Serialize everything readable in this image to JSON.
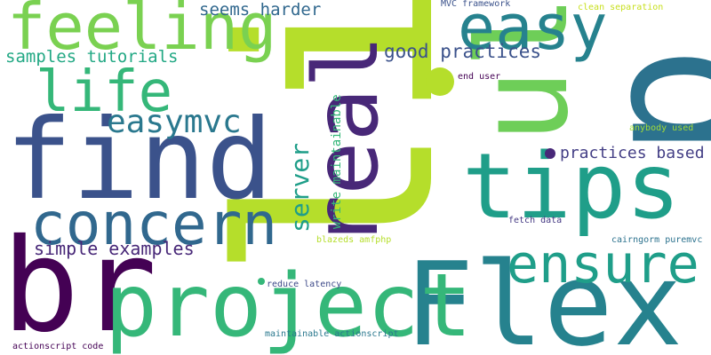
{
  "words": [
    {
      "text": "li",
      "color": "#b5de2b"
    },
    {
      "text": "p",
      "color": "#2c728e"
    },
    {
      "text": "find",
      "color": "#3b528b"
    },
    {
      "text": "br",
      "color": "#440154"
    },
    {
      "text": "Flex",
      "color": "#26828e"
    },
    {
      "text": "tips",
      "color": "#1f9e89"
    },
    {
      "text": "project",
      "color": "#35b779"
    },
    {
      "text": "ul",
      "color": "#6ece58"
    },
    {
      "text": "real",
      "color": "#482878"
    },
    {
      "text": "feeling",
      "color": "#7ad151"
    },
    {
      "text": "concern",
      "color": "#31688e"
    },
    {
      "text": "easy",
      "color": "#26828e"
    },
    {
      "text": "ensure",
      "color": "#1f9e89"
    },
    {
      "text": "life",
      "color": "#35b779"
    },
    {
      "text": "easymvc",
      "color": "#2a788e"
    },
    {
      "text": "server",
      "color": "#1f9e89"
    },
    {
      "text": "simple examples",
      "color": "#482878"
    },
    {
      "text": "good practices",
      "color": "#3b528b"
    },
    {
      "text": "samples tutorials",
      "color": "#22a884"
    },
    {
      "text": "practices based",
      "color": "#433e85"
    },
    {
      "text": "seems harder",
      "color": "#31688e"
    },
    {
      "text": "write maintainable",
      "color": "#35b779"
    },
    {
      "text": "actionscript code",
      "color": "#440154"
    },
    {
      "text": "maintainable actionscript",
      "color": "#2a788e"
    },
    {
      "text": "reduce latency",
      "color": "#3e4a89"
    },
    {
      "text": "fetch data",
      "color": "#443983"
    },
    {
      "text": "cairngorm puremvc",
      "color": "#2c728e"
    },
    {
      "text": "blazeds amfphp",
      "color": "#b5de2b"
    },
    {
      "text": "end user",
      "color": "#440154"
    },
    {
      "text": "MVC framework",
      "color": "#3b528b"
    },
    {
      "text": "clean separation",
      "color": "#c8e020"
    },
    {
      "text": "anybody used",
      "color": "#a0da39"
    }
  ],
  "dots": [
    {
      "name": "dot-yellow",
      "color": "#b5de2b"
    },
    {
      "name": "dot-purple",
      "color": "#482878"
    },
    {
      "name": "dot-green",
      "color": "#35b779"
    }
  ]
}
